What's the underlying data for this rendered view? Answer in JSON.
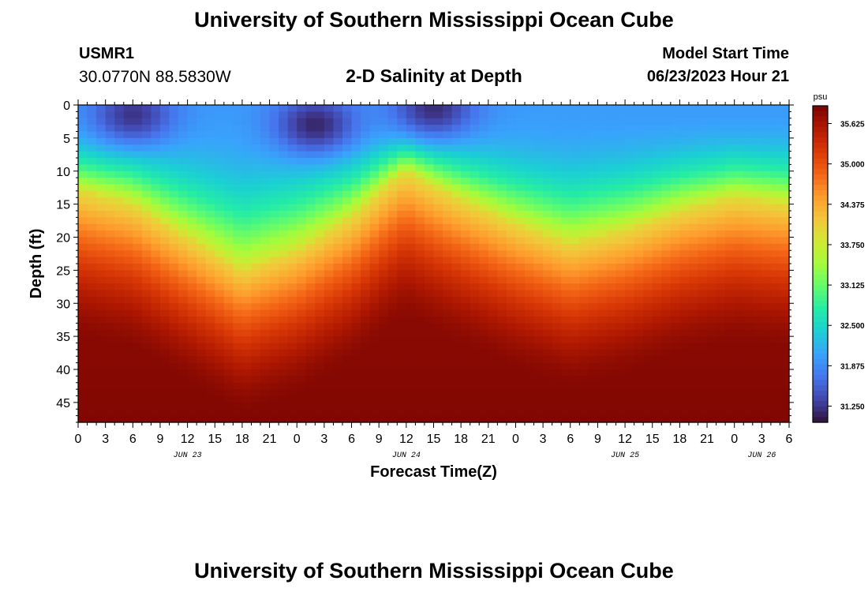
{
  "header": {
    "title": "University of Southern Mississippi Ocean Cube",
    "station_id": "USMR1",
    "coordinates": "30.0770N  88.5830W",
    "model_start_label": "Model Start Time",
    "model_start_value": "06/23/2023 Hour 21"
  },
  "footer": {
    "title": "University of Southern Mississippi Ocean Cube"
  },
  "colors": {
    "colormap": [
      "#30123b",
      "#4145ab",
      "#4675ed",
      "#39a2fc",
      "#1bcfd4",
      "#24eca6",
      "#61fc6c",
      "#a4fc3b",
      "#d1e834",
      "#f3c63a",
      "#fe9b2d",
      "#f36315",
      "#d93806",
      "#b11901",
      "#7a0402"
    ]
  },
  "chart_data": {
    "type": "heatmap",
    "title": "2-D Salinity at Depth",
    "xlabel": "Forecast Time(Z)",
    "ylabel": "Depth (ft)",
    "colorbar_unit": "psu",
    "x_hours": [
      0,
      78
    ],
    "ylim": [
      0,
      48
    ],
    "y_ticks": [
      0,
      5,
      10,
      15,
      20,
      25,
      30,
      35,
      40,
      45
    ],
    "x_tick_labels": [
      "0",
      "3",
      "6",
      "9",
      "12",
      "15",
      "18",
      "21",
      "0",
      "3",
      "6",
      "9",
      "12",
      "15",
      "18",
      "21",
      "0",
      "3",
      "6",
      "9",
      "12",
      "15",
      "18",
      "21",
      "0",
      "3",
      "6"
    ],
    "date_labels": [
      {
        "label": "JUN 23",
        "hour": 12
      },
      {
        "label": "JUN 24",
        "hour": 36
      },
      {
        "label": "JUN 25",
        "hour": 60
      },
      {
        "label": "JUN 26",
        "hour": 75
      }
    ],
    "colorbar": {
      "min": 31.0,
      "max": 35.9,
      "ticks": [
        "35.625",
        "35.000",
        "34.375",
        "33.750",
        "33.125",
        "32.500",
        "31.875",
        "31.250"
      ]
    },
    "halocline_depth_ft": [
      {
        "hour": 0,
        "depth": 13
      },
      {
        "hour": 6,
        "depth": 15
      },
      {
        "hour": 12,
        "depth": 20
      },
      {
        "hour": 18,
        "depth": 25
      },
      {
        "hour": 24,
        "depth": 22
      },
      {
        "hour": 30,
        "depth": 17
      },
      {
        "hour": 34,
        "depth": 12
      },
      {
        "hour": 36,
        "depth": 10
      },
      {
        "hour": 40,
        "depth": 13
      },
      {
        "hour": 48,
        "depth": 18
      },
      {
        "hour": 54,
        "depth": 21
      },
      {
        "hour": 60,
        "depth": 19
      },
      {
        "hour": 66,
        "depth": 16
      },
      {
        "hour": 72,
        "depth": 14
      },
      {
        "hour": 78,
        "depth": 15
      }
    ],
    "surface_min_patches": [
      {
        "hour": 6,
        "depth": 1.5,
        "salinity": 31.15
      },
      {
        "hour": 26,
        "depth": 3,
        "salinity": 31.05
      },
      {
        "hour": 39,
        "depth": 0.5,
        "salinity": 31.1
      }
    ],
    "surface_salinity_psu": 32.0,
    "bottom_salinity_psu": 35.85
  }
}
